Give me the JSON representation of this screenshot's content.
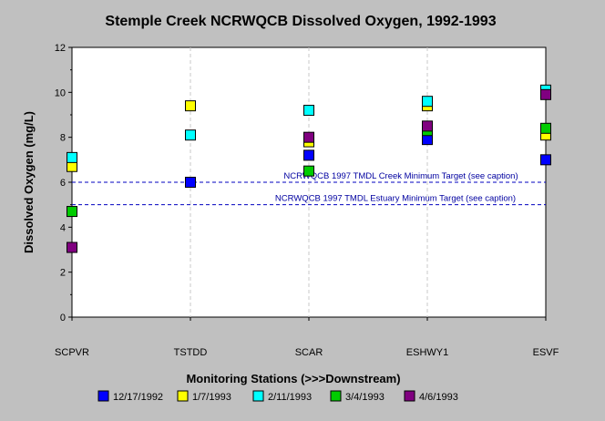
{
  "colors": {
    "background": "#c0c0c0",
    "plot_area": "#ffffff",
    "target_line": "#0000c0",
    "target_text": "#0000a0"
  },
  "chart_data": {
    "type": "scatter",
    "title": "Stemple Creek NCRWQCB Dissolved Oxygen, 1992-1993",
    "xlabel": "Monitoring Stations (>>>Downstream)",
    "ylabel": "Dissolved Oxygen (mg/L)",
    "categories": [
      "SCPVR",
      "TSTDD",
      "SCAR",
      "ESHWY1",
      "ESVF"
    ],
    "ylim": [
      0,
      12
    ],
    "yticks": [
      "0",
      "2",
      "4",
      "6",
      "8",
      "10",
      "12"
    ],
    "grid": "vertical dashed at each station",
    "legend_position": "bottom",
    "series": [
      {
        "name": "12/17/1992",
        "color": "#0000ff",
        "values": [
          null,
          6.0,
          7.2,
          7.9,
          7.0
        ]
      },
      {
        "name": "1/7/1993",
        "color": "#ffff00",
        "values": [
          6.7,
          9.4,
          7.8,
          9.4,
          8.1
        ]
      },
      {
        "name": "2/11/1993",
        "color": "#00ffff",
        "values": [
          7.1,
          8.1,
          9.2,
          9.6,
          10.1
        ]
      },
      {
        "name": "3/4/1993",
        "color": "#00cc00",
        "values": [
          4.7,
          null,
          6.5,
          8.3,
          8.4
        ]
      },
      {
        "name": "4/6/1993",
        "color": "#800080",
        "values": [
          3.1,
          null,
          8.0,
          8.5,
          9.9
        ]
      }
    ],
    "reference_lines": [
      {
        "value": 6.0,
        "label": "NCRWQCB 1997 TMDL Creek Minimum Target (see caption)"
      },
      {
        "value": 5.0,
        "label": "NCRWQCB 1997 TMDL  Estuary Minimum Target (see caption)"
      }
    ]
  }
}
